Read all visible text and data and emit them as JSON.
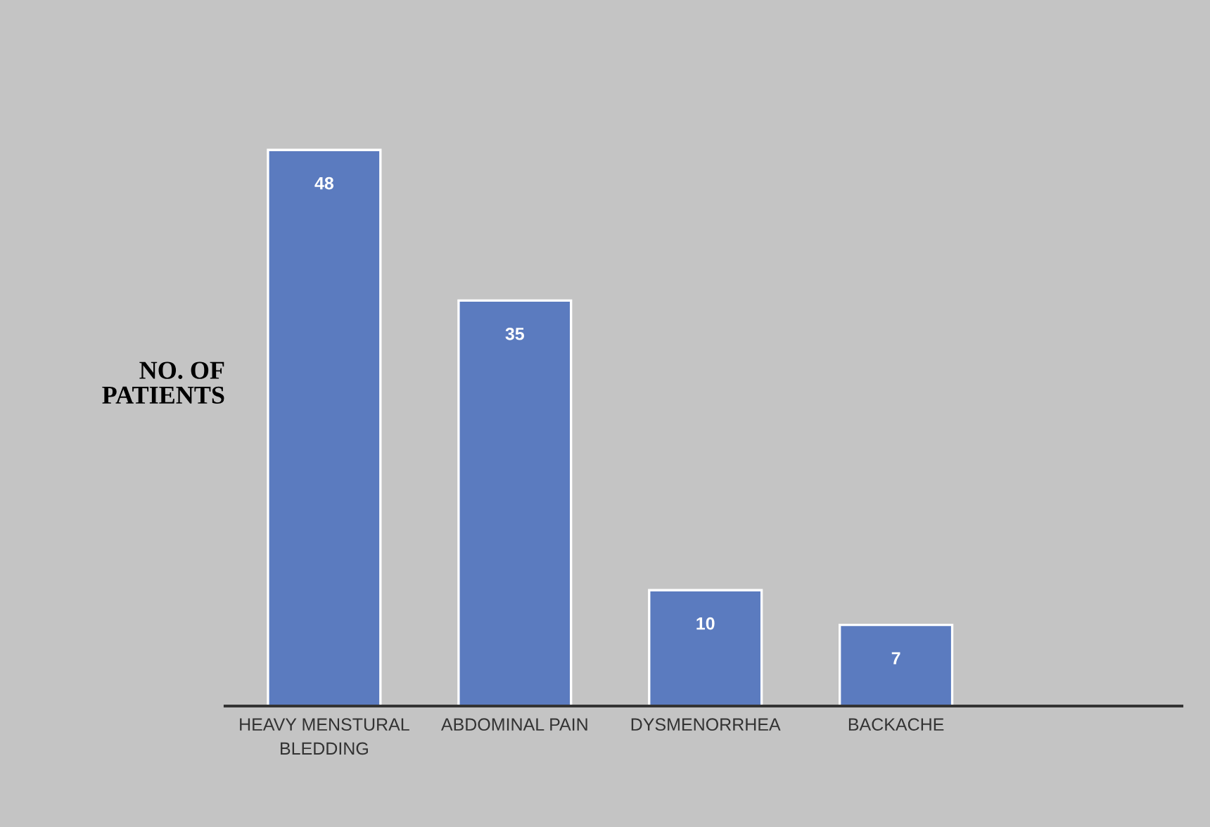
{
  "chart_data": {
    "type": "bar",
    "ylabel": "NO. OF\nPATIENTS",
    "categories": [
      "HEAVY MENSTURAL\nBLEDDING",
      "ABDOMINAL PAIN",
      "DYSMENORRHEA",
      "BACKACHE"
    ],
    "values": [
      48,
      35,
      10,
      7
    ],
    "color": "#5b7bbf",
    "data_labels": true,
    "grid": false,
    "legend": false
  }
}
